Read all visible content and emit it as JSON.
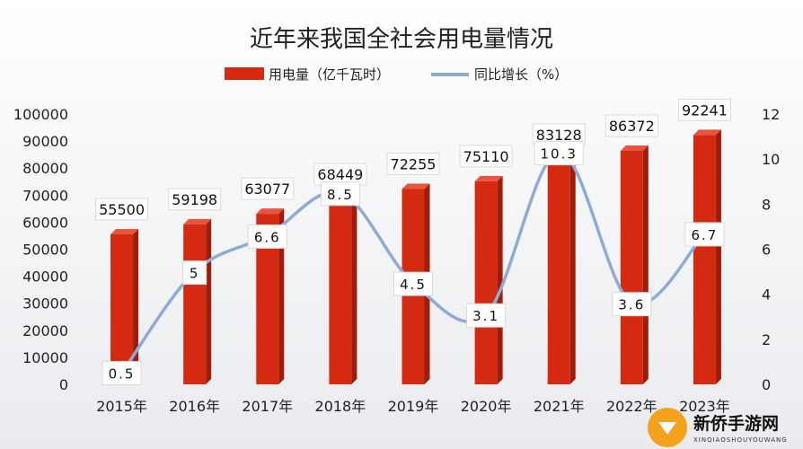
{
  "chart_data": {
    "type": "bar",
    "title": "近年来我国全社会用电量情况",
    "categories": [
      "2015年",
      "2016年",
      "2017年",
      "2018年",
      "2019年",
      "2020年",
      "2021年",
      "2022年",
      "2023年"
    ],
    "series": [
      {
        "name": "用电量（亿千瓦时）",
        "type": "bar",
        "axis": "left",
        "color": "#d42a12",
        "values": [
          55500,
          59198,
          63077,
          68449,
          72255,
          75110,
          83128,
          86372,
          92241
        ],
        "labels": [
          "55500",
          "59198",
          "63077",
          "68449",
          "72255",
          "75110",
          "83128",
          "86372",
          "92241"
        ]
      },
      {
        "name": "同比增长（%）",
        "type": "line",
        "axis": "right",
        "color": "#8eaad6",
        "values": [
          0.5,
          5,
          6.6,
          8.5,
          4.5,
          3.1,
          10.3,
          3.6,
          6.7
        ],
        "labels": [
          "0.5",
          "5",
          "6.6",
          "8.5",
          "4.5",
          "3.1",
          "10.3",
          "3.6",
          "6.7"
        ]
      }
    ],
    "y_left": {
      "ylim": [
        0,
        100000
      ],
      "ticks": [
        "0",
        "10000",
        "20000",
        "30000",
        "40000",
        "50000",
        "60000",
        "70000",
        "80000",
        "90000",
        "100000"
      ]
    },
    "y_right": {
      "ylim": [
        0,
        12
      ],
      "ticks": [
        "0",
        "2",
        "4",
        "6",
        "8",
        "10",
        "12"
      ]
    },
    "grid": false,
    "legend": "top-center"
  },
  "watermark": {
    "site_name": "新侨手游网",
    "site_url": "XINQIAOSHOUYOUWANG"
  }
}
